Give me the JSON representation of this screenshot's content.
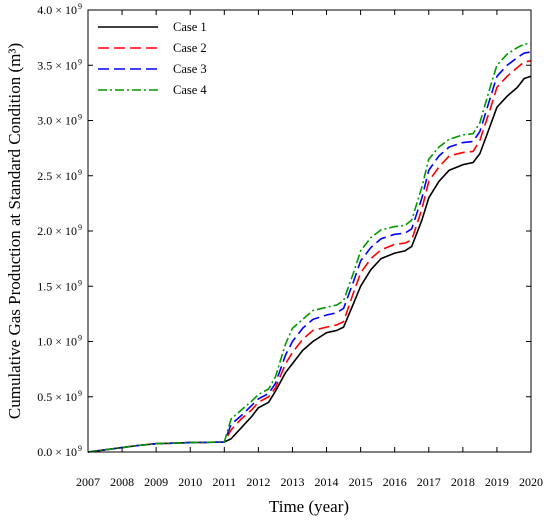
{
  "chart_data": {
    "type": "line",
    "title": "",
    "xlabel": "Time (year)",
    "ylabel": "Cumulative Gas Production at Standard Condition (m³)",
    "xlim": [
      2007,
      2020
    ],
    "ylim": [
      0,
      4.0
    ],
    "y_exponent": "9",
    "x_ticks": [
      "2007",
      "2008",
      "2009",
      "2010",
      "2011",
      "2012",
      "2013",
      "2014",
      "2015",
      "2016",
      "2017",
      "2018",
      "2019",
      "2020"
    ],
    "y_ticks": [
      "0.0 × 10",
      "0.5 × 10",
      "1.0 × 10",
      "1.5 × 10",
      "2.0 × 10",
      "2.5 × 10",
      "3.0 × 10",
      "3.5 × 10",
      "4.0 × 10"
    ],
    "grid": false,
    "legend_position": "top-left",
    "series": [
      {
        "name": "Case 1",
        "color": "#000000",
        "dash": "solid",
        "x": [
          2007.0,
          2007.5,
          2008.0,
          2008.5,
          2009.0,
          2009.5,
          2010.0,
          2010.5,
          2011.0,
          2011.2,
          2011.5,
          2011.8,
          2012.0,
          2012.3,
          2012.5,
          2012.8,
          2013.0,
          2013.3,
          2013.6,
          2014.0,
          2014.3,
          2014.5,
          2014.8,
          2015.0,
          2015.3,
          2015.6,
          2016.0,
          2016.3,
          2016.5,
          2016.8,
          2017.0,
          2017.3,
          2017.6,
          2018.0,
          2018.3,
          2018.5,
          2018.8,
          2019.0,
          2019.3,
          2019.6,
          2019.8,
          2020.0
        ],
        "y": [
          0.0,
          0.02,
          0.04,
          0.06,
          0.075,
          0.08,
          0.085,
          0.088,
          0.09,
          0.12,
          0.22,
          0.32,
          0.4,
          0.45,
          0.55,
          0.72,
          0.8,
          0.92,
          1.0,
          1.08,
          1.1,
          1.13,
          1.35,
          1.5,
          1.65,
          1.75,
          1.8,
          1.82,
          1.86,
          2.1,
          2.3,
          2.45,
          2.55,
          2.6,
          2.62,
          2.7,
          2.95,
          3.12,
          3.22,
          3.3,
          3.38,
          3.4
        ]
      },
      {
        "name": "Case 2",
        "color": "#ff0000",
        "dash": "long",
        "x": [
          2007.0,
          2007.5,
          2008.0,
          2008.5,
          2009.0,
          2009.5,
          2010.0,
          2010.5,
          2011.0,
          2011.2,
          2011.5,
          2011.8,
          2012.0,
          2012.3,
          2012.5,
          2012.8,
          2013.0,
          2013.3,
          2013.6,
          2014.0,
          2014.3,
          2014.5,
          2014.8,
          2015.0,
          2015.3,
          2015.6,
          2016.0,
          2016.3,
          2016.5,
          2016.8,
          2017.0,
          2017.3,
          2017.6,
          2018.0,
          2018.3,
          2018.5,
          2018.8,
          2019.0,
          2019.3,
          2019.6,
          2019.8,
          2020.0
        ],
        "y": [
          0.0,
          0.02,
          0.04,
          0.06,
          0.075,
          0.08,
          0.085,
          0.088,
          0.09,
          0.2,
          0.3,
          0.38,
          0.45,
          0.5,
          0.58,
          0.8,
          0.9,
          1.02,
          1.1,
          1.13,
          1.15,
          1.18,
          1.45,
          1.62,
          1.75,
          1.83,
          1.88,
          1.89,
          1.92,
          2.2,
          2.45,
          2.58,
          2.68,
          2.71,
          2.72,
          2.82,
          3.1,
          3.3,
          3.4,
          3.48,
          3.53,
          3.54
        ]
      },
      {
        "name": "Case 3",
        "color": "#0000ff",
        "dash": "long",
        "x": [
          2007.0,
          2007.5,
          2008.0,
          2008.5,
          2009.0,
          2009.5,
          2010.0,
          2010.5,
          2011.0,
          2011.2,
          2011.5,
          2011.8,
          2012.0,
          2012.3,
          2012.5,
          2012.8,
          2013.0,
          2013.3,
          2013.6,
          2014.0,
          2014.3,
          2014.5,
          2014.8,
          2015.0,
          2015.3,
          2015.6,
          2016.0,
          2016.3,
          2016.5,
          2016.8,
          2017.0,
          2017.3,
          2017.6,
          2018.0,
          2018.3,
          2018.5,
          2018.8,
          2019.0,
          2019.3,
          2019.6,
          2019.8,
          2020.0
        ],
        "y": [
          0.0,
          0.02,
          0.04,
          0.06,
          0.075,
          0.08,
          0.085,
          0.088,
          0.09,
          0.25,
          0.33,
          0.42,
          0.48,
          0.53,
          0.62,
          0.88,
          1.0,
          1.12,
          1.2,
          1.24,
          1.26,
          1.3,
          1.55,
          1.73,
          1.85,
          1.93,
          1.97,
          1.98,
          2.02,
          2.3,
          2.55,
          2.68,
          2.76,
          2.8,
          2.81,
          2.9,
          3.2,
          3.4,
          3.5,
          3.57,
          3.61,
          3.62
        ]
      },
      {
        "name": "Case 4",
        "color": "#009900",
        "dash": "dashdot",
        "x": [
          2007.0,
          2007.5,
          2008.0,
          2008.5,
          2009.0,
          2009.5,
          2010.0,
          2010.5,
          2011.0,
          2011.2,
          2011.5,
          2011.8,
          2012.0,
          2012.3,
          2012.5,
          2012.8,
          2013.0,
          2013.3,
          2013.6,
          2014.0,
          2014.3,
          2014.5,
          2014.8,
          2015.0,
          2015.3,
          2015.6,
          2016.0,
          2016.3,
          2016.5,
          2016.8,
          2017.0,
          2017.3,
          2017.6,
          2018.0,
          2018.3,
          2018.5,
          2018.8,
          2019.0,
          2019.3,
          2019.6,
          2019.8,
          2020.0
        ],
        "y": [
          0.0,
          0.02,
          0.04,
          0.06,
          0.075,
          0.08,
          0.085,
          0.088,
          0.09,
          0.3,
          0.38,
          0.46,
          0.52,
          0.57,
          0.68,
          0.98,
          1.12,
          1.2,
          1.28,
          1.31,
          1.33,
          1.37,
          1.63,
          1.82,
          1.94,
          2.01,
          2.04,
          2.05,
          2.1,
          2.4,
          2.65,
          2.76,
          2.83,
          2.87,
          2.88,
          2.98,
          3.3,
          3.5,
          3.6,
          3.66,
          3.69,
          3.7
        ]
      }
    ]
  }
}
